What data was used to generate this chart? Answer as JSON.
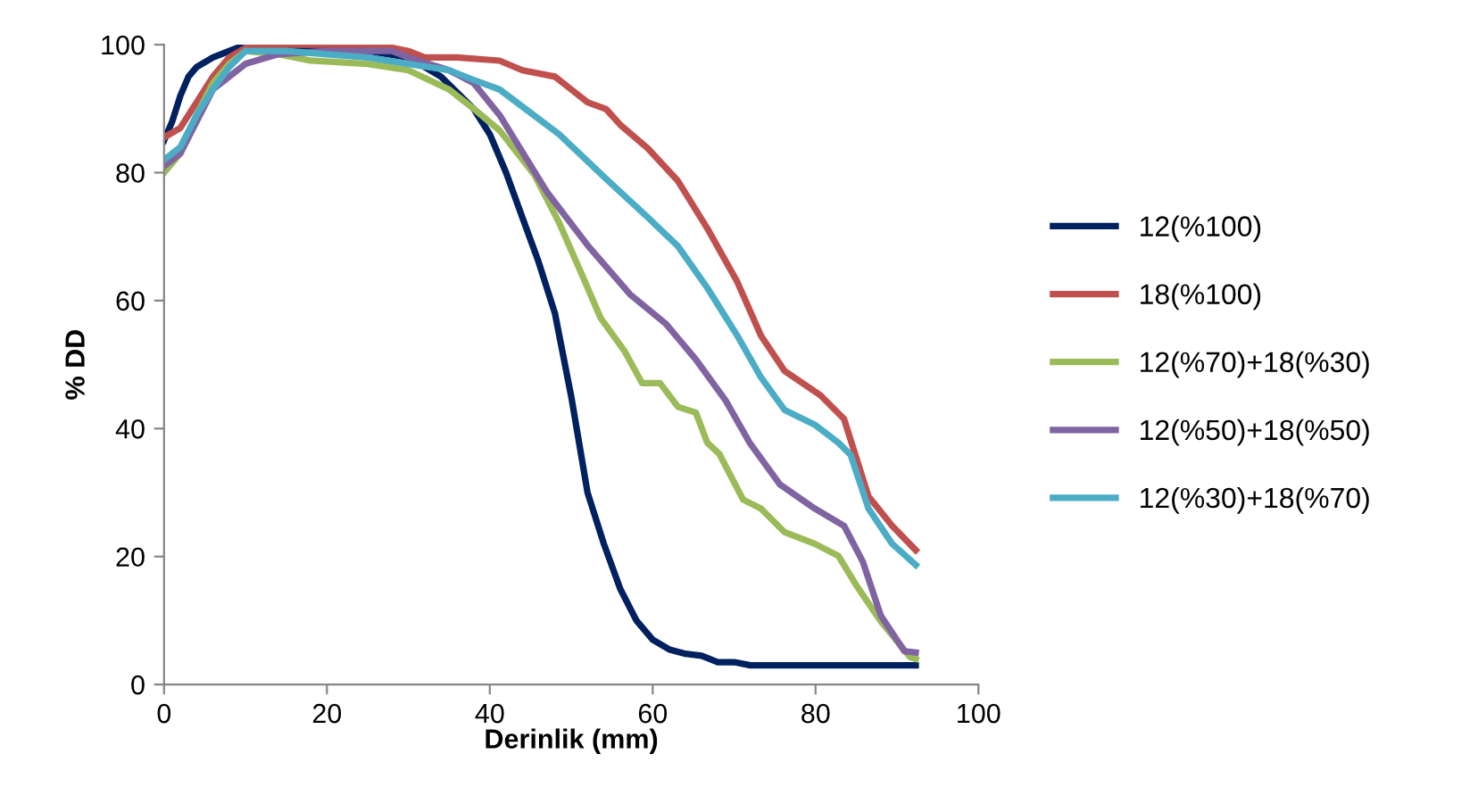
{
  "chart_data": {
    "type": "line",
    "xlabel": "Derinlik (mm)",
    "ylabel": "% DD",
    "xlim": [
      0,
      100
    ],
    "ylim": [
      0,
      100
    ],
    "xticks": [
      0,
      20,
      40,
      60,
      80,
      100
    ],
    "yticks": [
      0,
      20,
      40,
      60,
      80,
      100
    ],
    "grid": false,
    "legend": "right",
    "marker": "none",
    "line_style": "solid",
    "series": [
      {
        "name": "12(%100)",
        "color": "#002060",
        "x": [
          0,
          1,
          2,
          3,
          4,
          6,
          8,
          10,
          15,
          20,
          25,
          30,
          34,
          38,
          40,
          42,
          44,
          46,
          48,
          50,
          52,
          54,
          56,
          58,
          60,
          62,
          64,
          66,
          68,
          70,
          72,
          80,
          92.3
        ],
        "values": [
          85,
          88,
          92,
          95,
          96.5,
          98,
          99,
          100,
          99.5,
          99.5,
          99,
          98,
          95,
          90,
          86,
          80,
          73,
          66,
          58,
          45,
          30,
          22,
          15,
          10,
          7,
          5.5,
          4.8,
          4.5,
          3.5,
          3.5,
          3,
          3,
          3
        ]
      },
      {
        "name": "18(%100)",
        "color": "#c0504d",
        "x": [
          0,
          2,
          4,
          6,
          8,
          10,
          15,
          20,
          25,
          28,
          30,
          32,
          36,
          41.2,
          44,
          48,
          50,
          52,
          54.3,
          56,
          59.4,
          63.1,
          66.7,
          70.4,
          73.3,
          76.2,
          80.6,
          83.5,
          86.5,
          89.4,
          92.3
        ],
        "values": [
          85.5,
          87,
          91,
          95,
          98,
          99.5,
          100,
          100,
          100,
          99.5,
          99,
          98,
          98,
          97.5,
          96,
          95,
          93,
          91,
          89.9,
          87.5,
          83.8,
          78.7,
          71.3,
          62.9,
          54.5,
          49,
          45.2,
          41.5,
          29.4,
          24.8,
          21
        ]
      },
      {
        "name": "12(%70)+18(%30)",
        "color": "#9bbb59",
        "x": [
          0,
          2,
          4,
          6,
          8,
          10,
          14,
          18,
          25,
          30,
          35,
          38,
          41.2,
          45.5,
          48.5,
          51.4,
          53.6,
          56.5,
          58.7,
          60.9,
          63.1,
          65.3,
          66.7,
          68.2,
          71.1,
          73.3,
          76.2,
          79.9,
          82.8,
          85,
          88,
          91.6,
          92.3
        ],
        "values": [
          80,
          83,
          89,
          94,
          97,
          99,
          98.5,
          97.5,
          97,
          96,
          93,
          90,
          86.6,
          79.6,
          72.2,
          63.8,
          57.3,
          52.2,
          47.1,
          47.1,
          43.4,
          42.5,
          37.8,
          36,
          28.9,
          27.5,
          23.8,
          22,
          20.1,
          15.5,
          9.9,
          4.3,
          4
        ]
      },
      {
        "name": "12(%50)+18(%50)",
        "color": "#8064a2",
        "x": [
          0,
          2,
          4,
          6,
          8,
          10,
          14,
          20,
          28,
          30,
          35,
          38,
          41.2,
          47,
          52.1,
          57.2,
          61.6,
          65.3,
          69,
          71.9,
          75.6,
          79.9,
          83.5,
          85.8,
          88,
          90.9,
          92.3
        ],
        "values": [
          81,
          83,
          88,
          93,
          95,
          97,
          98.5,
          99,
          99,
          98,
          96,
          94,
          89,
          77,
          68.5,
          61,
          56.4,
          50.8,
          44.3,
          37.8,
          31.3,
          27.5,
          24.8,
          19.2,
          10.8,
          5.2,
          5
        ]
      },
      {
        "name": "12(%30)+18(%70)",
        "color": "#4bacc6",
        "x": [
          0,
          2,
          4,
          6,
          8,
          10,
          15,
          20,
          25,
          30,
          35,
          38,
          41.2,
          48.5,
          54.3,
          59.4,
          63.1,
          66.7,
          70.4,
          73.3,
          76.2,
          79.9,
          82.8,
          84.3,
          86.5,
          89.4,
          92.3
        ],
        "values": [
          82,
          84,
          89,
          93,
          96.5,
          99,
          99,
          98.5,
          98,
          97,
          96,
          94.5,
          93,
          86,
          79,
          73,
          68.5,
          62,
          54.5,
          48,
          42.9,
          40.6,
          37.8,
          35.9,
          27.5,
          22,
          18.7
        ]
      }
    ]
  }
}
